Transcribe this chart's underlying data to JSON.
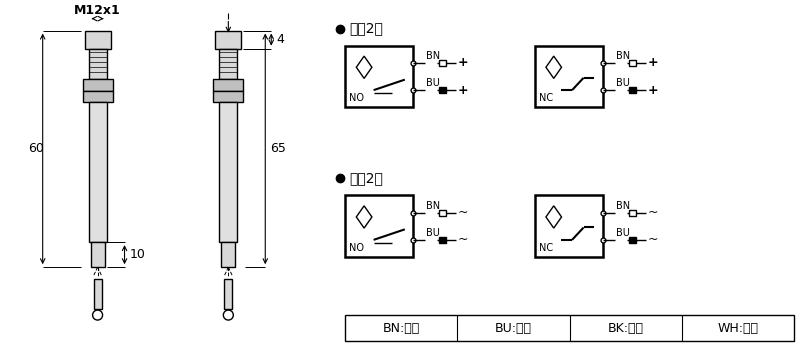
{
  "bg_color": "#ffffff",
  "line_color": "#000000",
  "title_dc": "直流2线",
  "title_ac": "交流2线",
  "no_label": "NO",
  "nc_label": "NC",
  "bn_label": "BN",
  "bu_label": "BU",
  "plus_label": "+",
  "ac_label": "~",
  "m12_label": "M12x1",
  "dim_60": "60",
  "dim_65": "65",
  "dim_10": "10",
  "dim_4": "4",
  "legend": [
    "BN:棕色",
    "BU:兰色",
    "BK:黑色",
    "WH:白色"
  ],
  "gray_light": "#d8d8d8",
  "gray_mid": "#c0c0c0",
  "gray_body": "#e0e0e0"
}
